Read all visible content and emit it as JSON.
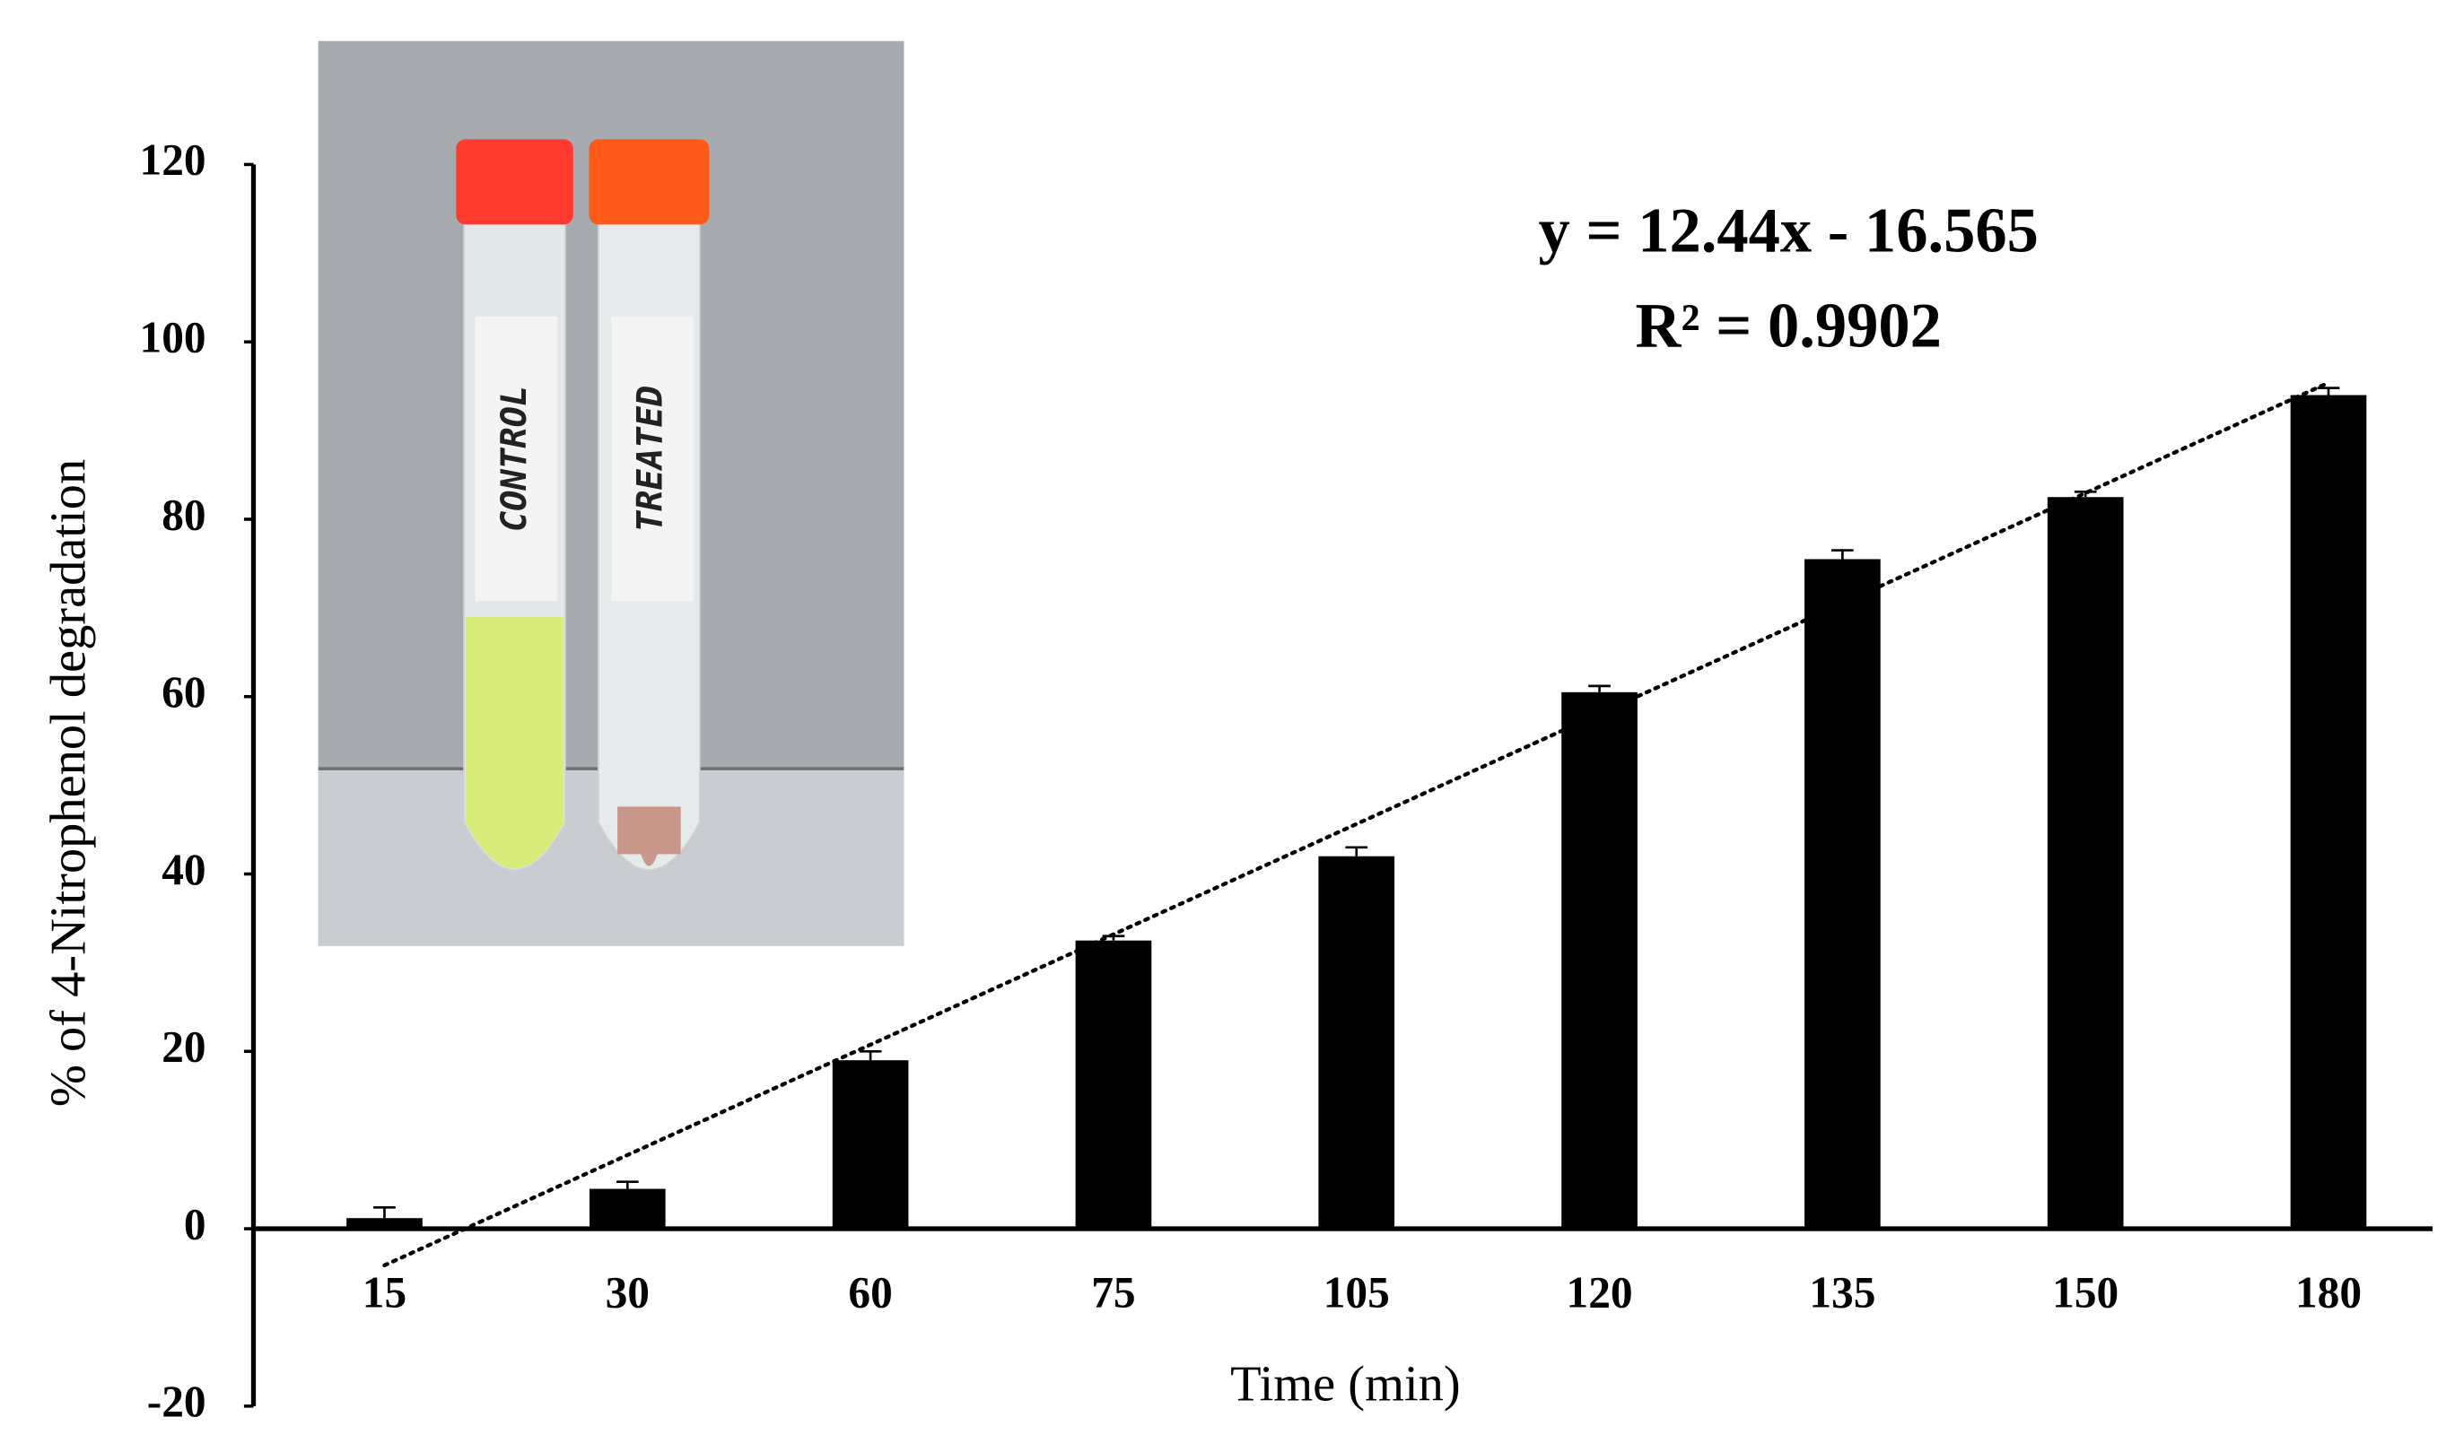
{
  "chart_data": {
    "type": "bar",
    "x_label": "Time  (min)",
    "y_label": "% of 4-Nitrophenol  degradation",
    "categories": [
      "15",
      "30",
      "60",
      "75",
      "105",
      "120",
      "135",
      "150",
      "180"
    ],
    "values": [
      1.2,
      4.5,
      19,
      32.5,
      42,
      60.5,
      75.5,
      82.5,
      94
    ],
    "errors": [
      1.2,
      0.8,
      1,
      0.5,
      1,
      0.7,
      1,
      0.6,
      0.8
    ],
    "color": "#000000",
    "ylim": [
      -20,
      120
    ],
    "yticks": [
      -20,
      0,
      20,
      40,
      60,
      80,
      100,
      120
    ],
    "trendline": {
      "slope": 12.44,
      "intercept": -16.565,
      "equation": "y = 12.44x - 16.565",
      "r_squared": "R² = 0.9902"
    },
    "inset_labels": [
      "CONTROL",
      "TREATED"
    ]
  }
}
